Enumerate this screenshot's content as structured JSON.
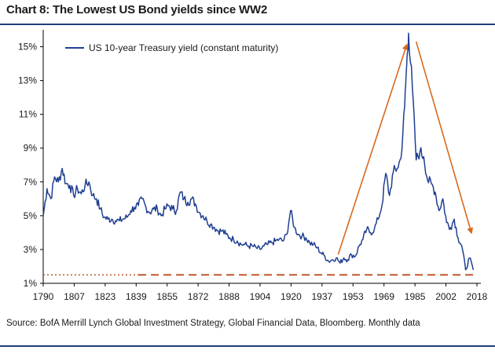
{
  "header": {
    "title": "Chart 8: The Lowest US Bond yields since WW2"
  },
  "footer": {
    "source": "Source: BofA Merrill Lynch Global Investment Strategy, Global Financial Data, Bloomberg. Monthly data"
  },
  "colors": {
    "series": "#1f3f91",
    "arrow": "#d9681e",
    "dashed_line": "#c0562a",
    "title_rule": "#1f3f77",
    "text": "#1a1a1a"
  },
  "chart_data": {
    "type": "line",
    "title": "",
    "xlabel": "",
    "ylabel": "",
    "xlim": [
      1790,
      2020
    ],
    "ylim": [
      1,
      16
    ],
    "x_ticks": [
      "1790",
      "1807",
      "1823",
      "1839",
      "1855",
      "1872",
      "1888",
      "1904",
      "1920",
      "1937",
      "1953",
      "1969",
      "1985",
      "2002",
      "2018"
    ],
    "y_ticks": [
      "1%",
      "3%",
      "5%",
      "7%",
      "9%",
      "11%",
      "13%",
      "15%"
    ],
    "legend": {
      "position": "top-left"
    },
    "series": [
      {
        "name": "US 10-year Treasury yield (constant maturity)",
        "x": [
          1790,
          1792,
          1794,
          1796,
          1798,
          1800,
          1802,
          1804,
          1806,
          1808,
          1810,
          1812,
          1814,
          1816,
          1818,
          1820,
          1822,
          1824,
          1826,
          1828,
          1830,
          1832,
          1834,
          1836,
          1838,
          1840,
          1842,
          1844,
          1846,
          1848,
          1850,
          1852,
          1854,
          1856,
          1858,
          1860,
          1862,
          1864,
          1866,
          1868,
          1870,
          1872,
          1874,
          1876,
          1878,
          1880,
          1882,
          1884,
          1886,
          1888,
          1890,
          1892,
          1894,
          1896,
          1898,
          1900,
          1902,
          1904,
          1906,
          1908,
          1910,
          1912,
          1914,
          1916,
          1918,
          1920,
          1922,
          1924,
          1926,
          1928,
          1930,
          1932,
          1934,
          1936,
          1938,
          1940,
          1942,
          1944,
          1946,
          1948,
          1950,
          1952,
          1954,
          1956,
          1958,
          1960,
          1962,
          1964,
          1966,
          1968,
          1970,
          1972,
          1974,
          1976,
          1978,
          1980,
          1981,
          1982,
          1984,
          1986,
          1988,
          1990,
          1992,
          1994,
          1996,
          1998,
          2000,
          2002,
          2004,
          2006,
          2008,
          2010,
          2012,
          2014,
          2016
        ],
        "y": [
          5.0,
          6.6,
          6.0,
          7.3,
          7.0,
          7.8,
          6.9,
          6.8,
          6.2,
          6.6,
          6.3,
          6.8,
          7.0,
          6.2,
          6.0,
          5.4,
          4.9,
          4.8,
          4.8,
          4.7,
          4.7,
          4.8,
          4.9,
          5.3,
          5.5,
          5.6,
          6.0,
          5.5,
          5.2,
          5.4,
          5.4,
          5.0,
          5.4,
          5.6,
          5.4,
          5.3,
          6.4,
          6.0,
          5.8,
          6.0,
          5.7,
          5.2,
          5.0,
          4.7,
          4.5,
          4.3,
          4.1,
          4.1,
          3.9,
          3.7,
          3.6,
          3.5,
          3.3,
          3.3,
          3.2,
          3.2,
          3.1,
          3.0,
          3.2,
          3.3,
          3.4,
          3.5,
          3.6,
          3.5,
          3.9,
          5.3,
          4.3,
          3.9,
          3.8,
          3.7,
          3.4,
          3.3,
          3.1,
          2.8,
          2.6,
          2.3,
          2.4,
          2.5,
          2.2,
          2.5,
          2.4,
          2.7,
          2.6,
          3.2,
          3.6,
          4.2,
          4.0,
          4.2,
          4.8,
          5.6,
          7.5,
          6.2,
          7.6,
          7.8,
          8.4,
          11.5,
          13.9,
          15.8,
          12.6,
          8.3,
          8.8,
          8.5,
          7.1,
          6.9,
          6.4,
          5.3,
          6.0,
          4.6,
          4.3,
          4.8,
          3.7,
          3.2,
          1.8,
          2.5,
          1.8
        ]
      }
    ],
    "annotations": [
      {
        "type": "arrow",
        "from": [
          1945,
          2.7
        ],
        "to": [
          1981,
          15.1
        ]
      },
      {
        "type": "arrow",
        "from": [
          1986,
          15.3
        ],
        "to": [
          2015,
          4.0
        ]
      },
      {
        "type": "dashed-hline",
        "y": 1.5,
        "from_x": 1790,
        "to_x": 2016
      }
    ]
  }
}
